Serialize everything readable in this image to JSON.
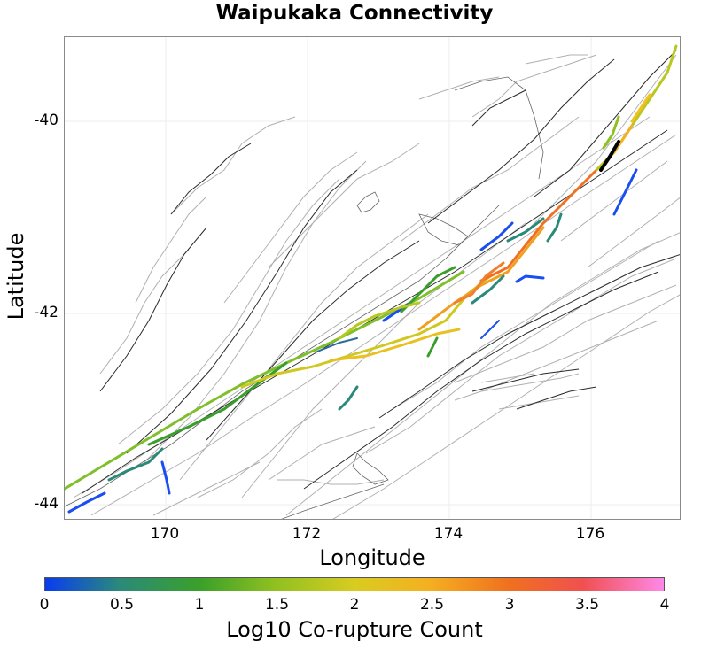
{
  "title": "Waipukaka Connectivity",
  "xaxis": {
    "label": "Longitude",
    "ticks": [
      "170",
      "172",
      "174",
      "176"
    ]
  },
  "yaxis": {
    "label": "Latitude",
    "ticks": [
      "-40",
      "-42",
      "-44"
    ]
  },
  "colorbar": {
    "label": "Log10 Co-rupture Count",
    "ticks": [
      "0",
      "0.5",
      "1",
      "1.5",
      "2",
      "2.5",
      "3",
      "3.5",
      "4"
    ],
    "colors": [
      "#0a3cf0",
      "#2a8a7a",
      "#3aa02a",
      "#8fc020",
      "#d8cc20",
      "#f5b020",
      "#f07020",
      "#f05050",
      "#ff88e8"
    ]
  },
  "map": {
    "background_fault_color": "#9a9a9a",
    "fault_trace_color": "#222222",
    "highlight_fault_color": "#000000"
  }
}
